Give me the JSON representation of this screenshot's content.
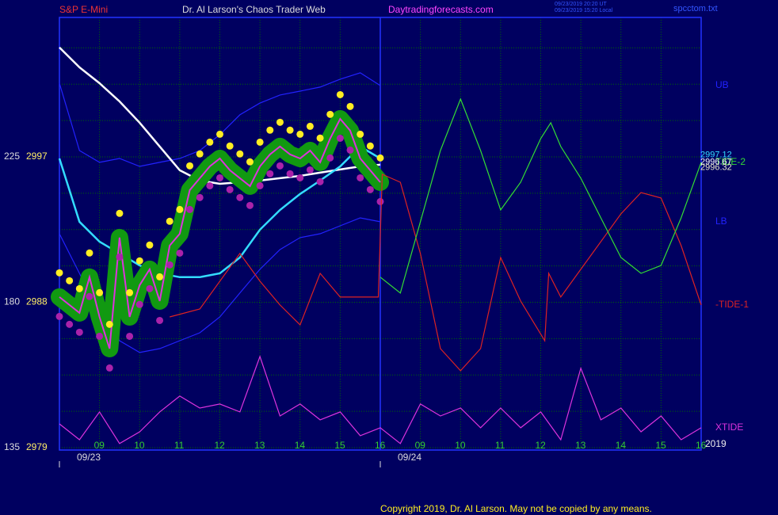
{
  "chart_data": {
    "type": "line",
    "symbol": "S&P E-Mini",
    "title": "Dr. Al Larson's Chaos Trader Web",
    "site": "Daytradingforecasts.com",
    "timestamps": [
      "09/23/2019 20:20 UT",
      "09/23/2019 15:20 Local"
    ],
    "file": "spcctom.txt",
    "copyright": "Copyright 2019, Dr. Al Larson. May not be copied by any means.",
    "year": "2019",
    "xlim": [
      0,
      16
    ],
    "xticks": [
      {
        "value": 1,
        "label": "09"
      },
      {
        "value": 2,
        "label": "10"
      },
      {
        "value": 3,
        "label": "11"
      },
      {
        "value": 4,
        "label": "12"
      },
      {
        "value": 5,
        "label": "13"
      },
      {
        "value": 6,
        "label": "14"
      },
      {
        "value": 7,
        "label": "15"
      },
      {
        "value": 8,
        "label": "16"
      },
      {
        "value": 9,
        "label": "09"
      },
      {
        "value": 10,
        "label": "10"
      },
      {
        "value": 11,
        "label": "11"
      },
      {
        "value": 12,
        "label": "12"
      },
      {
        "value": 13,
        "label": "13"
      },
      {
        "value": 14,
        "label": "14"
      },
      {
        "value": 15,
        "label": "15"
      },
      {
        "value": 16,
        "label": "16"
      }
    ],
    "dates": [
      {
        "value": 0,
        "label": "09/23"
      },
      {
        "value": 8,
        "label": "09/24"
      }
    ],
    "day_separator": 8,
    "ylim": [
      2978.85,
      3005.63
    ],
    "yticks": [
      2979,
      2988,
      2997
    ],
    "tide_ticks": [
      {
        "value": 2979,
        "label": "135"
      },
      {
        "value": 2988,
        "label": "180"
      },
      {
        "value": 2997,
        "label": "225"
      }
    ],
    "ygrid": [
      2981.25,
      2983.5,
      2985.75,
      2990.25,
      2992.5,
      2994.75,
      2999.25,
      3001.5,
      3003.75
    ],
    "grid": true,
    "price_labels": [
      2997.12,
      2996.67,
      2996.32
    ],
    "price_label_colors": [
      "#33ddff",
      "#ffffff",
      "#eeeecc"
    ],
    "series": [
      {
        "name": "UB",
        "color": "#2222ff",
        "width": 1.2,
        "x": [
          0,
          0.5,
          1,
          1.5,
          2,
          2.5,
          3,
          3.5,
          4,
          4.5,
          5,
          5.5,
          6,
          6.5,
          7,
          7.5,
          8
        ],
        "values": [
          3001.56,
          2997.39,
          2996.66,
          2996.9,
          2996.41,
          2996.66,
          2996.9,
          2997.39,
          2998.37,
          2999.6,
          3000.33,
          3000.83,
          3001.07,
          3001.32,
          3001.81,
          3002.2,
          3001.41
        ]
      },
      {
        "name": "LB",
        "color": "#2222ff",
        "width": 1.2,
        "x": [
          0,
          0.5,
          1,
          1.5,
          2,
          2.5,
          3,
          3.5,
          4,
          4.5,
          5,
          5.5,
          6,
          6.5,
          7,
          7.5,
          8
        ],
        "values": [
          2992.24,
          2989.79,
          2987.34,
          2985.62,
          2984.89,
          2985.13,
          2985.62,
          2986.11,
          2987.09,
          2988.57,
          2990.04,
          2991.26,
          2992.0,
          2992.24,
          2992.73,
          2993.22,
          2992.98
        ]
      },
      {
        "color": "#ffffff",
        "width": 2.5,
        "x": [
          0,
          0.5,
          1,
          1.5,
          2,
          2.5,
          3,
          3.5,
          4,
          4.5,
          5,
          5.5,
          6,
          6.5,
          7,
          7.5,
          8
        ],
        "values": [
          3003.77,
          3002.54,
          3001.56,
          3000.43,
          2999.11,
          2997.64,
          2996.17,
          2995.53,
          2995.33,
          2995.43,
          2995.53,
          2995.68,
          2995.82,
          2996.02,
          2996.22,
          2996.41,
          2996.51
        ]
      },
      {
        "color": "#33ddff",
        "width": 2.5,
        "x": [
          0,
          0.5,
          1,
          1.5,
          2,
          2.5,
          3,
          3.5,
          4,
          4.5,
          5,
          5.5,
          6,
          6.5,
          7,
          7.5,
          8
        ],
        "values": [
          2996.9,
          2992.98,
          2991.75,
          2991.02,
          2990.28,
          2989.79,
          2989.55,
          2989.55,
          2989.79,
          2990.77,
          2992.49,
          2993.71,
          2994.7,
          2995.53,
          2996.41,
          2997.64,
          2996.9
        ]
      },
      {
        "color": "#dd33dd",
        "width": 2,
        "halo": "#119911",
        "x": [
          0,
          0.25,
          0.5,
          0.75,
          1,
          1.25,
          1.5,
          1.75,
          2,
          2.25,
          2.5,
          2.75,
          3,
          3.25,
          3.5,
          3.75,
          4,
          4.25,
          4.5,
          4.75,
          5,
          5.25,
          5.5,
          5.75,
          6,
          6.25,
          6.5,
          6.75,
          7,
          7.25,
          7.5,
          7.75,
          8
        ],
        "values": [
          2988.32,
          2987.83,
          2987.34,
          2989.55,
          2987.09,
          2985.13,
          2992.0,
          2987.09,
          2989.06,
          2990.04,
          2988.07,
          2991.51,
          2992.24,
          2994.94,
          2995.68,
          2996.41,
          2996.9,
          2996.17,
          2995.68,
          2995.19,
          2996.41,
          2997.15,
          2997.64,
          2997.15,
          2996.9,
          2997.39,
          2996.66,
          2998.13,
          2999.35,
          2998.62,
          2996.9,
          2996.17,
          2995.43
        ]
      },
      {
        "color": "#ffee22",
        "marker": "dot",
        "x": [
          0,
          0.25,
          0.5,
          0.75,
          1,
          1.25,
          1.5,
          1.75,
          2,
          2.25,
          2.5,
          2.75,
          3,
          3.25,
          3.5,
          3.75,
          4,
          4.25,
          4.5,
          4.75,
          5,
          5.25,
          5.5,
          5.75,
          6,
          6.25,
          6.5,
          6.75,
          7,
          7.25,
          7.5,
          7.75,
          8
        ],
        "values": [
          2989.82,
          2989.33,
          2988.84,
          2991.05,
          2988.59,
          2986.63,
          2993.5,
          2988.59,
          2990.56,
          2991.54,
          2989.57,
          2993.01,
          2993.74,
          2996.44,
          2997.18,
          2997.91,
          2998.4,
          2997.67,
          2997.18,
          2996.69,
          2997.91,
          2998.65,
          2999.14,
          2998.65,
          2998.4,
          2998.89,
          2998.16,
          2999.63,
          3000.85,
          3000.12,
          2998.4,
          2997.67,
          2996.93
        ]
      },
      {
        "color": "#aa22aa",
        "marker": "dot",
        "x": [
          0,
          0.25,
          0.5,
          0.75,
          1,
          1.25,
          1.5,
          1.75,
          2,
          2.25,
          2.5,
          2.75,
          3,
          3.25,
          3.5,
          3.75,
          4,
          4.25,
          4.5,
          4.75,
          5,
          5.25,
          5.5,
          5.75,
          6,
          6.25,
          6.5,
          6.75,
          7,
          7.25,
          7.5,
          7.75,
          8
        ],
        "values": [
          2987.12,
          2986.63,
          2986.14,
          2988.35,
          2985.89,
          2983.93,
          2990.8,
          2985.89,
          2987.86,
          2988.84,
          2986.87,
          2990.31,
          2991.04,
          2993.74,
          2994.48,
          2995.21,
          2995.7,
          2994.97,
          2994.48,
          2993.99,
          2995.21,
          2995.95,
          2996.44,
          2995.95,
          2995.7,
          2996.19,
          2995.46,
          2996.93,
          2998.15,
          2997.42,
          2995.7,
          2994.97,
          2994.23
        ]
      },
      {
        "name": "-TIDE-1",
        "color": "#dd2222",
        "width": 1.2,
        "x": [
          2.75,
          3.5,
          4.5,
          5,
          5.5,
          6,
          6.5,
          7,
          7.95,
          8.05,
          8.5,
          9,
          9.5,
          10,
          10.5,
          11,
          11.5,
          12.1,
          12.2,
          12.5,
          13,
          14,
          14.5,
          15,
          15.5,
          16
        ],
        "values": [
          2987.09,
          2987.58,
          2991.02,
          2989.3,
          2987.83,
          2986.6,
          2989.79,
          2988.32,
          2988.32,
          2995.92,
          2995.43,
          2991.02,
          2985.13,
          2983.76,
          2985.13,
          2990.77,
          2988.07,
          2985.62,
          2989.79,
          2988.32,
          2990.04,
          2993.47,
          2994.79,
          2994.45,
          2991.51,
          2987.83
        ]
      },
      {
        "name": "TIDE-2",
        "color": "#33dd33",
        "width": 1.2,
        "x": [
          8,
          8.5,
          9,
          9.5,
          10,
          10.5,
          11,
          11.5,
          12,
          12.25,
          12.5,
          13,
          13.5,
          14,
          14.5,
          15,
          15.5,
          16
        ],
        "values": [
          2989.55,
          2988.57,
          2992.98,
          2997.39,
          3000.58,
          2997.39,
          2993.71,
          2995.43,
          2998.13,
          2999.11,
          2997.64,
          2995.68,
          2993.22,
          2990.77,
          2989.79,
          2990.28,
          2993.22,
          2996.66
        ]
      },
      {
        "name": "XTIDE",
        "color": "#dd33dd",
        "width": 1.2,
        "x": [
          0,
          0.5,
          1,
          1.5,
          2,
          2.5,
          3,
          3.5,
          4,
          4.5,
          5,
          5.5,
          6,
          6.5,
          7,
          7.5,
          8,
          8.5,
          9,
          9.5,
          10,
          10.5,
          11,
          11.5,
          12,
          12.5,
          13,
          13.5,
          14,
          14.5,
          15,
          15.5,
          16
        ],
        "values": [
          2980.47,
          2979.49,
          2981.21,
          2979.25,
          2979.98,
          2981.21,
          2982.19,
          2981.45,
          2981.7,
          2981.21,
          2984.64,
          2980.96,
          2981.7,
          2980.72,
          2981.21,
          2979.74,
          2980.23,
          2979.25,
          2981.7,
          2980.96,
          2981.45,
          2980.23,
          2981.45,
          2980.23,
          2981.21,
          2979.49,
          2983.91,
          2980.72,
          2981.45,
          2979.98,
          2980.96,
          2979.49,
          2980.23
        ]
      }
    ]
  }
}
